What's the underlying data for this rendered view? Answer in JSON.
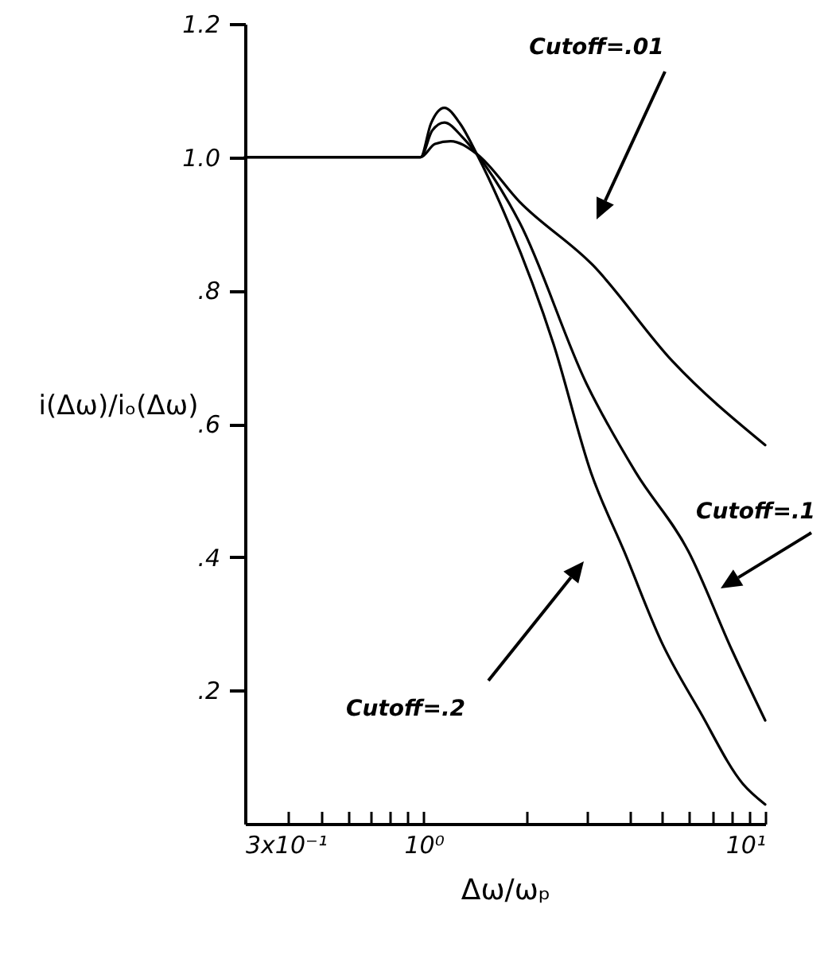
{
  "chart_data": {
    "type": "line",
    "xlabel": "Δω/ωₚ",
    "ylabel": "i(Δω)/iₒ(Δω)",
    "log": "x",
    "xlim": [
      0.3,
      10
    ],
    "xticks": [
      {
        "value": 0.3,
        "label": "3x10⁻¹"
      },
      {
        "value": 0.4,
        "label": null
      },
      {
        "value": 0.5,
        "label": null
      },
      {
        "value": 0.6,
        "label": null
      },
      {
        "value": 0.7,
        "label": null
      },
      {
        "value": 0.8,
        "label": null
      },
      {
        "value": 0.9,
        "label": null
      },
      {
        "value": 1,
        "label": "10⁰"
      },
      {
        "value": 2,
        "label": null
      },
      {
        "value": 3,
        "label": null
      },
      {
        "value": 4,
        "label": null
      },
      {
        "value": 5,
        "label": null
      },
      {
        "value": 6,
        "label": null
      },
      {
        "value": 7,
        "label": null
      },
      {
        "value": 8,
        "label": null
      },
      {
        "value": 9,
        "label": null
      },
      {
        "value": 10,
        "label": "10¹"
      }
    ],
    "ylim": [
      0,
      1.2
    ],
    "yticks": [
      {
        "value": 0.2,
        "label": ".2"
      },
      {
        "value": 0.4,
        "label": ".4"
      },
      {
        "value": 0.6,
        "label": ".6"
      },
      {
        "value": 0.8,
        "label": ".8"
      },
      {
        "value": 1.0,
        "label": "1.0"
      },
      {
        "value": 1.2,
        "label": "1.2"
      }
    ],
    "grid": false,
    "series": [
      {
        "color": "#000000",
        "x": [
          0.3,
          0.98,
          1.05,
          1.15,
          1.28,
          1.43,
          1.77,
          2.4,
          3.09,
          3.87,
          5,
          6.43,
          8.6,
          10
        ],
        "values": [
          1,
          1,
          1.05,
          1.074,
          1.05,
          1.005,
          0.902,
          0.72,
          0.527,
          0.408,
          0.27,
          0.169,
          0.06,
          0.029
        ]
      },
      {
        "color": "#000000",
        "x": [
          0.3,
          0.98,
          1.06,
          1.15,
          1.3,
          1.43,
          1.91,
          3,
          4.18,
          5.97,
          8,
          10
        ],
        "values": [
          1,
          1,
          1.04,
          1.052,
          1.03,
          1.005,
          0.902,
          0.66,
          0.527,
          0.408,
          0.26,
          0.155
        ]
      },
      {
        "color": "#000000",
        "x": [
          0.3,
          0.98,
          1.08,
          1.2,
          1.43,
          1.91,
          3.13,
          5.35,
          10
        ],
        "values": [
          1,
          1,
          1.02,
          1.024,
          1.005,
          0.933,
          0.838,
          0.694,
          0.568
        ]
      }
    ],
    "annotations": [
      "Cutoff=.01",
      "Cutoff=.1",
      "Cutoff=.2"
    ]
  }
}
